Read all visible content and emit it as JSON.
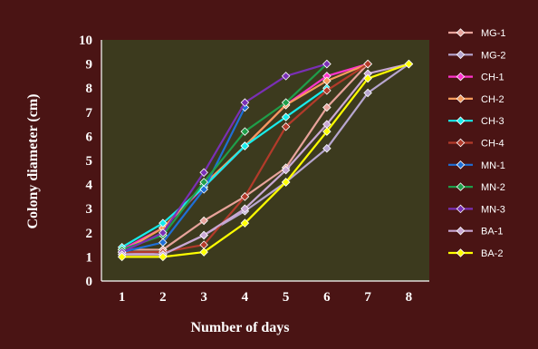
{
  "chart_data": {
    "type": "line",
    "xlabel": "Number of days",
    "ylabel": "Colony diameter  (cm)",
    "x": [
      1,
      2,
      3,
      4,
      5,
      6,
      7,
      8
    ],
    "xlim": [
      0.5,
      8.5
    ],
    "ylim": [
      0,
      10
    ],
    "yticks": [
      0,
      1,
      2,
      3,
      4,
      5,
      6,
      7,
      8,
      9,
      10
    ],
    "grid": false,
    "legend_position": "right",
    "plot_background": "#3c3a1e",
    "series": [
      {
        "name": "MG-1",
        "color": "#e8a39b",
        "values": [
          1.3,
          1.3,
          2.5,
          3.5,
          4.7,
          7.2,
          9.0,
          null
        ]
      },
      {
        "name": "MG-2",
        "color": "#b7a6d0",
        "values": [
          1.2,
          1.1,
          1.9,
          2.9,
          4.1,
          5.5,
          7.8,
          9.0
        ]
      },
      {
        "name": "CH-1",
        "color": "#ff33cc",
        "values": [
          1.3,
          2.2,
          3.9,
          5.6,
          7.3,
          8.5,
          9.0,
          null
        ]
      },
      {
        "name": "CH-2",
        "color": "#f59b5c",
        "values": [
          1.2,
          2.2,
          4.0,
          5.6,
          7.3,
          8.3,
          9.0,
          null
        ]
      },
      {
        "name": "CH-3",
        "color": "#18ecec",
        "values": [
          1.4,
          2.4,
          3.9,
          5.6,
          6.8,
          8.0,
          null,
          null
        ]
      },
      {
        "name": "CH-4",
        "color": "#b33a2a",
        "values": [
          1.2,
          1.2,
          1.5,
          3.5,
          6.4,
          7.9,
          9.0,
          null
        ]
      },
      {
        "name": "MN-1",
        "color": "#1f6fd6",
        "values": [
          1.2,
          1.6,
          3.8,
          7.2,
          null,
          null,
          null,
          null
        ]
      },
      {
        "name": "MN-2",
        "color": "#1f9e4a",
        "values": [
          1.3,
          1.9,
          4.1,
          6.2,
          7.4,
          9.0,
          null,
          null
        ]
      },
      {
        "name": "MN-3",
        "color": "#7a2fb5",
        "values": [
          1.2,
          2.0,
          4.5,
          7.4,
          8.5,
          9.0,
          null,
          null
        ]
      },
      {
        "name": "BA-1",
        "color": "#c9a8d4",
        "values": [
          1.1,
          1.1,
          1.9,
          3.0,
          4.6,
          6.5,
          8.6,
          9.0
        ]
      },
      {
        "name": "BA-2",
        "color": "#ffff00",
        "values": [
          1.0,
          1.0,
          1.2,
          2.4,
          4.1,
          6.2,
          8.4,
          9.0
        ]
      }
    ]
  }
}
